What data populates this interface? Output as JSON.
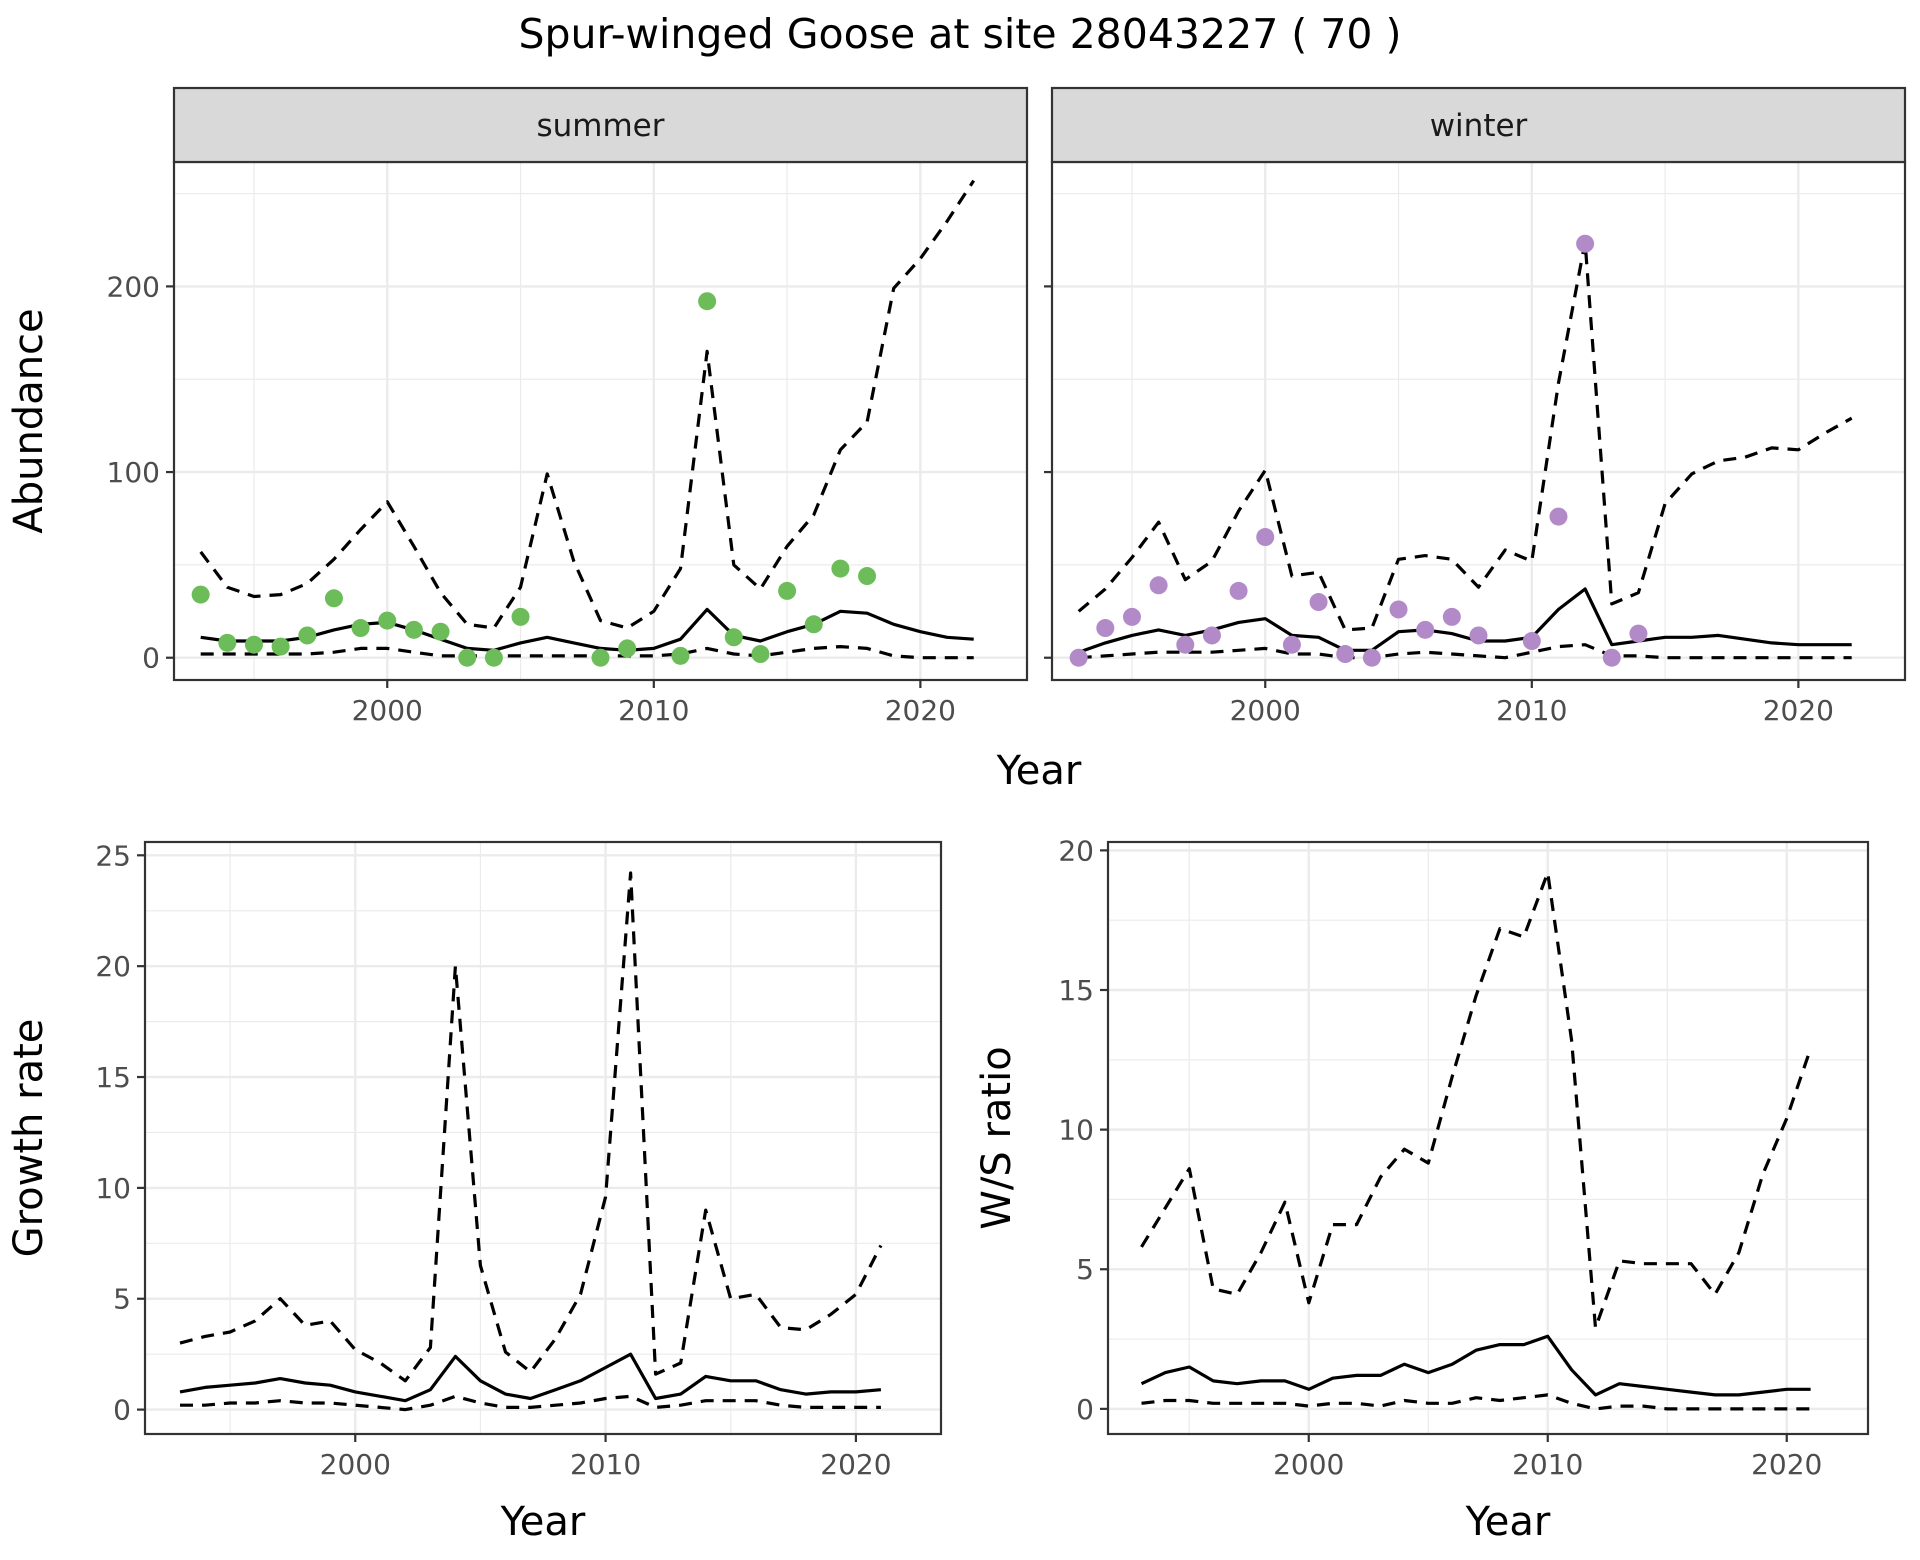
{
  "title": "Spur-winged Goose at site 28043227 ( 70 )",
  "colors": {
    "summer_points": "#6cbd5a",
    "winter_points": "#b38ac8",
    "line": "#000000",
    "strip_bg": "#d9d9d9"
  },
  "chart_data": [
    {
      "id": "summer",
      "type": "line",
      "facet_label": "summer",
      "xlabel": "",
      "ylabel": "Abundance",
      "xlim": [
        1992,
        2024
      ],
      "ylim": [
        -12,
        267
      ],
      "xticks": [
        2000,
        2010,
        2020
      ],
      "yticks": [
        0,
        100,
        200
      ],
      "grid": true,
      "point_color": "#6cbd5a",
      "points": {
        "x": [
          1993,
          1994,
          1995,
          1996,
          1997,
          1998,
          1999,
          2000,
          2001,
          2002,
          2003,
          2004,
          2005,
          2008,
          2009,
          2011,
          2012,
          2013,
          2014,
          2015,
          2016,
          2017,
          2018
        ],
        "y": [
          34,
          8,
          7,
          6,
          12,
          32,
          16,
          20,
          15,
          14,
          0,
          0,
          22,
          0,
          5,
          1,
          192,
          11,
          2,
          36,
          18,
          48,
          44
        ]
      },
      "series": [
        {
          "style": "solid",
          "x": [
            1993,
            1994,
            1995,
            1996,
            1997,
            1998,
            1999,
            2000,
            2001,
            2002,
            2003,
            2004,
            2005,
            2006,
            2007,
            2008,
            2009,
            2010,
            2011,
            2012,
            2013,
            2014,
            2015,
            2016,
            2017,
            2018,
            2019,
            2020,
            2021,
            2022
          ],
          "y": [
            11,
            9,
            9,
            9,
            11,
            15,
            18,
            19,
            15,
            10,
            5,
            4,
            8,
            11,
            8,
            5,
            4,
            5,
            10,
            26,
            12,
            9,
            14,
            18,
            25,
            24,
            18,
            14,
            11,
            10
          ]
        },
        {
          "style": "dashed",
          "x": [
            1993,
            1994,
            1995,
            1996,
            1997,
            1998,
            1999,
            2000,
            2001,
            2002,
            2003,
            2004,
            2005,
            2006,
            2007,
            2008,
            2009,
            2010,
            2011,
            2012,
            2013,
            2014,
            2015,
            2016,
            2017,
            2018,
            2019,
            2020,
            2021,
            2022
          ],
          "y": [
            57,
            38,
            33,
            34,
            40,
            53,
            69,
            84,
            60,
            35,
            18,
            16,
            38,
            99,
            52,
            20,
            16,
            25,
            48,
            165,
            50,
            37,
            60,
            77,
            112,
            127,
            199,
            215,
            235,
            257
          ]
        },
        {
          "style": "dashed",
          "x": [
            1993,
            1994,
            1995,
            1996,
            1997,
            1998,
            1999,
            2000,
            2001,
            2002,
            2003,
            2004,
            2005,
            2006,
            2007,
            2008,
            2009,
            2010,
            2011,
            2012,
            2013,
            2014,
            2015,
            2016,
            2017,
            2018,
            2019,
            2020,
            2021,
            2022
          ],
          "y": [
            2,
            2,
            2,
            2,
            2,
            3,
            5,
            5,
            3,
            1,
            1,
            1,
            1,
            1,
            1,
            1,
            1,
            1,
            2,
            5,
            2,
            1,
            3,
            5,
            6,
            5,
            1,
            0,
            0,
            0
          ]
        }
      ]
    },
    {
      "id": "winter",
      "type": "line",
      "facet_label": "winter",
      "xlabel": "",
      "ylabel": "",
      "xlim": [
        1992,
        2024
      ],
      "ylim": [
        -12,
        267
      ],
      "xticks": [
        2000,
        2010,
        2020
      ],
      "yticks": [
        0,
        100,
        200
      ],
      "grid": true,
      "point_color": "#b38ac8",
      "points": {
        "x": [
          1993,
          1994,
          1995,
          1996,
          1997,
          1998,
          1999,
          2000,
          2001,
          2002,
          2003,
          2004,
          2005,
          2006,
          2007,
          2008,
          2010,
          2011,
          2012,
          2013,
          2014
        ],
        "y": [
          0,
          16,
          22,
          39,
          7,
          12,
          36,
          65,
          7,
          30,
          2,
          0,
          26,
          15,
          22,
          12,
          9,
          76,
          223,
          0,
          13
        ]
      },
      "series": [
        {
          "style": "solid",
          "x": [
            1993,
            1994,
            1995,
            1996,
            1997,
            1998,
            1999,
            2000,
            2001,
            2002,
            2003,
            2004,
            2005,
            2006,
            2007,
            2008,
            2009,
            2010,
            2011,
            2012,
            2013,
            2014,
            2015,
            2016,
            2017,
            2018,
            2019,
            2020,
            2021,
            2022
          ],
          "y": [
            3,
            8,
            12,
            15,
            12,
            15,
            19,
            21,
            12,
            11,
            4,
            4,
            14,
            15,
            13,
            9,
            9,
            11,
            26,
            37,
            7,
            9,
            11,
            11,
            12,
            10,
            8,
            7,
            7,
            7
          ]
        },
        {
          "style": "dashed",
          "x": [
            1993,
            1994,
            1995,
            1996,
            1997,
            1998,
            1999,
            2000,
            2001,
            2002,
            2003,
            2004,
            2005,
            2006,
            2007,
            2008,
            2009,
            2010,
            2011,
            2012,
            2013,
            2014,
            2015,
            2016,
            2017,
            2018,
            2019,
            2020,
            2021,
            2022
          ],
          "y": [
            25,
            37,
            54,
            73,
            42,
            52,
            79,
            101,
            44,
            46,
            15,
            16,
            53,
            55,
            53,
            38,
            58,
            52,
            148,
            224,
            29,
            35,
            83,
            99,
            106,
            108,
            113,
            112,
            121,
            129
          ]
        },
        {
          "style": "dashed",
          "x": [
            1993,
            1994,
            1995,
            1996,
            1997,
            1998,
            1999,
            2000,
            2001,
            2002,
            2003,
            2004,
            2005,
            2006,
            2007,
            2008,
            2009,
            2010,
            2011,
            2012,
            2013,
            2014,
            2015,
            2016,
            2017,
            2018,
            2019,
            2020,
            2021,
            2022
          ],
          "y": [
            0,
            1,
            2,
            3,
            3,
            3,
            4,
            5,
            2,
            2,
            0,
            0,
            2,
            3,
            2,
            1,
            0,
            3,
            6,
            7,
            1,
            1,
            0,
            0,
            0,
            0,
            0,
            0,
            0,
            0
          ]
        }
      ]
    },
    {
      "id": "growth",
      "type": "line",
      "xlabel": "Year",
      "ylabel": "Growth rate",
      "xlim": [
        1991.6,
        2023.4
      ],
      "ylim": [
        -1.1,
        25.6
      ],
      "xticks": [
        2000,
        2010,
        2020
      ],
      "yticks": [
        0,
        5,
        10,
        15,
        20,
        25
      ],
      "grid": true,
      "series": [
        {
          "style": "solid",
          "x": [
            1993,
            1994,
            1995,
            1996,
            1997,
            1998,
            1999,
            2000,
            2001,
            2002,
            2003,
            2004,
            2005,
            2006,
            2007,
            2008,
            2009,
            2010,
            2011,
            2012,
            2013,
            2014,
            2015,
            2016,
            2017,
            2018,
            2019,
            2020,
            2021
          ],
          "y": [
            0.8,
            1.0,
            1.1,
            1.2,
            1.4,
            1.2,
            1.1,
            0.8,
            0.6,
            0.4,
            0.9,
            2.4,
            1.3,
            0.7,
            0.5,
            0.9,
            1.3,
            1.9,
            2.5,
            0.5,
            0.7,
            1.5,
            1.3,
            1.3,
            0.9,
            0.7,
            0.8,
            0.8,
            0.9
          ]
        },
        {
          "style": "dashed",
          "x": [
            1993,
            1994,
            1995,
            1996,
            1997,
            1998,
            1999,
            2000,
            2001,
            2002,
            2003,
            2004,
            2005,
            2006,
            2007,
            2008,
            2009,
            2010,
            2011,
            2012,
            2013,
            2014,
            2015,
            2016,
            2017,
            2018,
            2019,
            2020,
            2021
          ],
          "y": [
            3.0,
            3.3,
            3.5,
            4.0,
            5.0,
            3.8,
            4.0,
            2.7,
            2.1,
            1.3,
            2.8,
            20.0,
            6.5,
            2.6,
            1.7,
            3.2,
            5.2,
            9.6,
            24.2,
            1.6,
            2.1,
            9.0,
            5.0,
            5.2,
            3.7,
            3.6,
            4.3,
            5.2,
            7.4
          ]
        },
        {
          "style": "dashed",
          "x": [
            1993,
            1994,
            1995,
            1996,
            1997,
            1998,
            1999,
            2000,
            2001,
            2002,
            2003,
            2004,
            2005,
            2006,
            2007,
            2008,
            2009,
            2010,
            2011,
            2012,
            2013,
            2014,
            2015,
            2016,
            2017,
            2018,
            2019,
            2020,
            2021
          ],
          "y": [
            0.2,
            0.2,
            0.3,
            0.3,
            0.4,
            0.3,
            0.3,
            0.2,
            0.1,
            0.0,
            0.2,
            0.6,
            0.3,
            0.1,
            0.1,
            0.2,
            0.3,
            0.5,
            0.6,
            0.1,
            0.2,
            0.4,
            0.4,
            0.4,
            0.2,
            0.1,
            0.1,
            0.1,
            0.1
          ]
        }
      ]
    },
    {
      "id": "ws",
      "type": "line",
      "xlabel": "Year",
      "ylabel": "W/S ratio",
      "xlim": [
        1991.6,
        2023.4
      ],
      "ylim": [
        -0.9,
        20.3
      ],
      "xticks": [
        2000,
        2010,
        2020
      ],
      "yticks": [
        0,
        5,
        10,
        15,
        20
      ],
      "grid": true,
      "series": [
        {
          "style": "solid",
          "x": [
            1993,
            1994,
            1995,
            1996,
            1997,
            1998,
            1999,
            2000,
            2001,
            2002,
            2003,
            2004,
            2005,
            2006,
            2007,
            2008,
            2009,
            2010,
            2011,
            2012,
            2013,
            2014,
            2015,
            2016,
            2017,
            2018,
            2019,
            2020,
            2021
          ],
          "y": [
            0.9,
            1.3,
            1.5,
            1.0,
            0.9,
            1.0,
            1.0,
            0.7,
            1.1,
            1.2,
            1.2,
            1.6,
            1.3,
            1.6,
            2.1,
            2.3,
            2.3,
            2.6,
            1.4,
            0.5,
            0.9,
            0.8,
            0.7,
            0.6,
            0.5,
            0.5,
            0.6,
            0.7,
            0.7
          ]
        },
        {
          "style": "dashed",
          "x": [
            1993,
            1994,
            1995,
            1996,
            1997,
            1998,
            1999,
            2000,
            2001,
            2002,
            2003,
            2004,
            2005,
            2006,
            2007,
            2008,
            2009,
            2010,
            2011,
            2012,
            2013,
            2014,
            2015,
            2016,
            2017,
            2018,
            2019,
            2020,
            2021
          ],
          "y": [
            5.8,
            7.2,
            8.6,
            4.3,
            4.1,
            5.6,
            7.4,
            3.8,
            6.6,
            6.6,
            8.3,
            9.3,
            8.8,
            11.9,
            14.8,
            17.2,
            16.9,
            19.2,
            13.2,
            2.9,
            5.3,
            5.2,
            5.2,
            5.2,
            4.1,
            5.6,
            8.4,
            10.4,
            12.9
          ]
        },
        {
          "style": "dashed",
          "x": [
            1993,
            1994,
            1995,
            1996,
            1997,
            1998,
            1999,
            2000,
            2001,
            2002,
            2003,
            2004,
            2005,
            2006,
            2007,
            2008,
            2009,
            2010,
            2011,
            2012,
            2013,
            2014,
            2015,
            2016,
            2017,
            2018,
            2019,
            2020,
            2021
          ],
          "y": [
            0.2,
            0.3,
            0.3,
            0.2,
            0.2,
            0.2,
            0.2,
            0.1,
            0.2,
            0.2,
            0.1,
            0.3,
            0.2,
            0.2,
            0.4,
            0.3,
            0.4,
            0.5,
            0.2,
            0.0,
            0.1,
            0.1,
            0.0,
            0.0,
            0.0,
            0.0,
            0.0,
            0.0,
            0.0
          ]
        }
      ]
    }
  ],
  "labels": {
    "top_xlabel": "Year",
    "growth_xlabel": "Year",
    "ws_xlabel": "Year"
  }
}
